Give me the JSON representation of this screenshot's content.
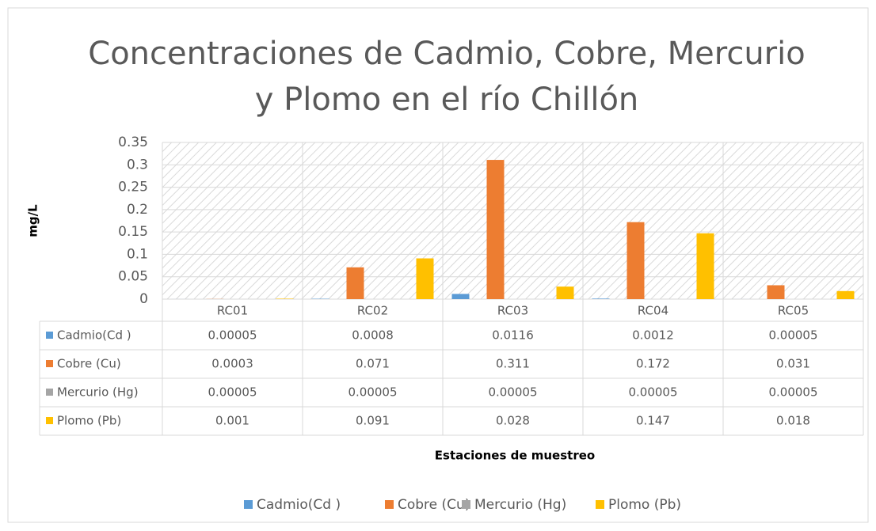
{
  "chart_data": {
    "type": "bar",
    "title_lines": [
      "Concentraciones de Cadmio, Cobre, Mercurio",
      "y Plomo en el río Chillón"
    ],
    "ylabel": "mg/L",
    "xlabel": "Estaciones de muestreo",
    "categories": [
      "RC01",
      "RC02",
      "RC03",
      "RC04",
      "RC05"
    ],
    "series": [
      {
        "name": "Cadmio(Cd )",
        "color": "#5b9bd5",
        "values": [
          5e-05,
          0.0008,
          0.0116,
          0.0012,
          5e-05
        ]
      },
      {
        "name": "Cobre (Cu)",
        "color": "#ed7d31",
        "values": [
          0.0003,
          0.071,
          0.311,
          0.172,
          0.031
        ]
      },
      {
        "name": "Mercurio (Hg)",
        "color": "#a5a5a5",
        "values": [
          5e-05,
          5e-05,
          5e-05,
          5e-05,
          5e-05
        ]
      },
      {
        "name": "Plomo (Pb)",
        "color": "#ffc000",
        "values": [
          0.001,
          0.091,
          0.028,
          0.147,
          0.018
        ]
      }
    ],
    "ylim": [
      0,
      0.35
    ],
    "yticks": [
      0,
      0.05,
      0.1,
      0.15,
      0.2,
      0.25,
      0.3,
      0.35
    ],
    "grid": true,
    "legend": "bottom",
    "data_table": true
  }
}
